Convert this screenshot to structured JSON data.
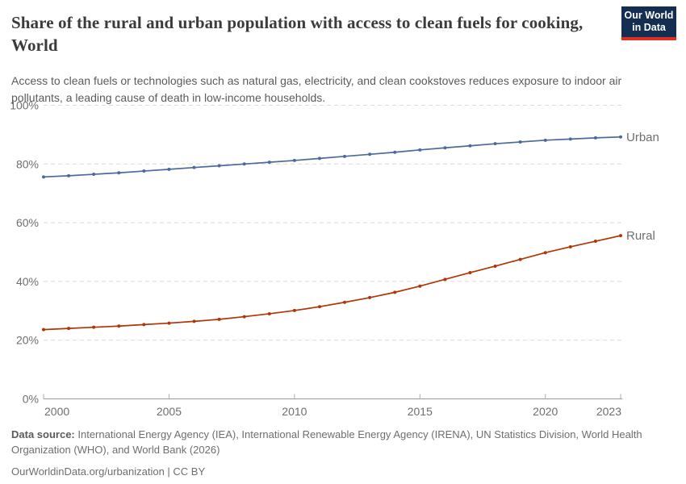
{
  "header": {
    "title": "Share of the rural and urban population with access to clean fuels for cooking, World",
    "subtitle": "Access to clean fuels or technologies such as natural gas, electricity, and clean cookstoves reduces exposure to indoor air pollutants, a leading cause of death in low-income households.",
    "logo": {
      "line1": "Our World",
      "line2": "in Data",
      "bg_color": "#142e52",
      "accent_color": "#dc3022"
    }
  },
  "chart_data": {
    "type": "line",
    "title": "Share of the rural and urban population with access to clean fuels for cooking, World",
    "xlabel": "",
    "ylabel": "",
    "xlim": [
      2000,
      2023
    ],
    "ylim": [
      0,
      100
    ],
    "x_ticks": [
      2000,
      2005,
      2010,
      2015,
      2020,
      2023
    ],
    "y_ticks": [
      0,
      20,
      40,
      60,
      80,
      100
    ],
    "y_tick_suffix": "%",
    "grid": "horizontal-dashed",
    "legend_position": "end-of-line-labels",
    "x": [
      2000,
      2001,
      2002,
      2003,
      2004,
      2005,
      2006,
      2007,
      2008,
      2009,
      2010,
      2011,
      2012,
      2013,
      2014,
      2015,
      2016,
      2017,
      2018,
      2019,
      2020,
      2021,
      2022,
      2023
    ],
    "series": [
      {
        "name": "Urban",
        "color": "#4C6A9C",
        "values": [
          75.6,
          76.0,
          76.5,
          77.0,
          77.6,
          78.2,
          78.8,
          79.4,
          80.0,
          80.6,
          81.2,
          81.9,
          82.6,
          83.3,
          84.0,
          84.8,
          85.5,
          86.2,
          86.9,
          87.5,
          88.1,
          88.5,
          88.9,
          89.2
        ]
      },
      {
        "name": "Rural",
        "color": "#B13507",
        "values": [
          23.6,
          24.0,
          24.4,
          24.8,
          25.3,
          25.8,
          26.4,
          27.1,
          28.0,
          29.0,
          30.1,
          31.4,
          32.9,
          34.5,
          36.3,
          38.4,
          40.7,
          43.0,
          45.2,
          47.5,
          49.8,
          51.8,
          53.7,
          55.6
        ]
      }
    ]
  },
  "footer": {
    "datasource_label": "Data source:",
    "datasource_text": " International Energy Agency (IEA), International Renewable Energy Agency (IRENA), UN Statistics Division, World Health Organization (WHO), and World Bank (2026)",
    "link_line": "OurWorldinData.org/urbanization | CC BY"
  }
}
